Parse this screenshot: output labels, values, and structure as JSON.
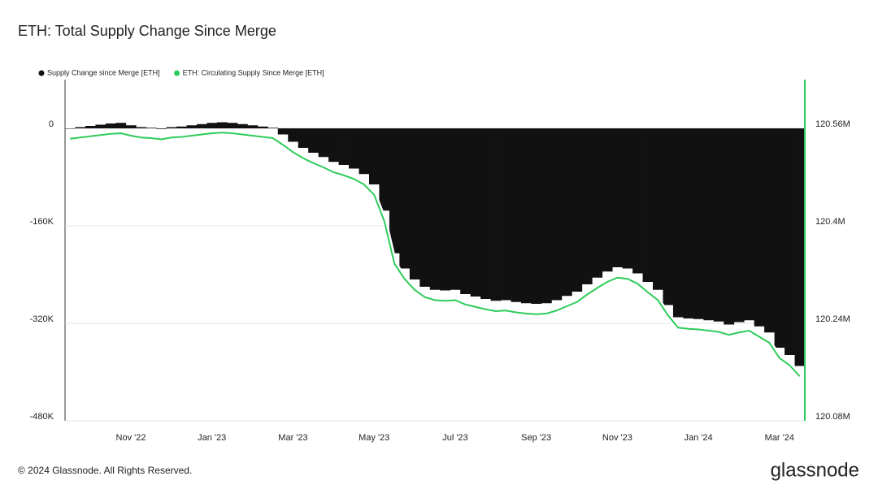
{
  "chart_data": {
    "type": "bar-line",
    "title": "ETH: Total Supply Change Since Merge",
    "categories": [
      null,
      null,
      null,
      null,
      null,
      null,
      "Nov '22",
      null,
      null,
      null,
      null,
      null,
      null,
      null,
      "Jan '23",
      null,
      null,
      null,
      null,
      null,
      null,
      null,
      "Mar '23",
      null,
      null,
      null,
      null,
      null,
      null,
      null,
      "May '23",
      null,
      null,
      null,
      null,
      null,
      null,
      null,
      "Jul '23",
      null,
      null,
      null,
      null,
      null,
      null,
      null,
      "Sep '23",
      null,
      null,
      null,
      null,
      null,
      null,
      null,
      "Nov '23",
      null,
      null,
      null,
      null,
      null,
      null,
      null,
      "Jan '24",
      null,
      null,
      null,
      null,
      null,
      null,
      null,
      "Mar '24",
      null,
      null
    ],
    "series": [
      {
        "name": "Supply Change since Merge [ETH]",
        "color": "#111111",
        "values": [
          0,
          2000,
          4000,
          6000,
          8000,
          9000,
          5000,
          2000,
          1000,
          -1000,
          2000,
          3000,
          5000,
          7000,
          9000,
          10000,
          9000,
          7000,
          5000,
          3000,
          1000,
          -10000,
          -22000,
          -32000,
          -40000,
          -47000,
          -55000,
          -60000,
          -66000,
          -75000,
          -92000,
          -135000,
          -205000,
          -230000,
          -248000,
          -260000,
          -265000,
          -266000,
          -265000,
          -272000,
          -276000,
          -280000,
          -283000,
          -282000,
          -285000,
          -287000,
          -288000,
          -287000,
          -282000,
          -275000,
          -268000,
          -256000,
          -245000,
          -235000,
          -228000,
          -230000,
          -238000,
          -252000,
          -265000,
          -290000,
          -310000,
          -312000,
          -313000,
          -315000,
          -317000,
          -322000,
          -318000,
          -315000,
          -325000,
          -335000,
          -360000,
          -372000,
          -390000
        ]
      },
      {
        "name": "ETH: Circulating Supply Since Merge [ETH]",
        "color": "#2ecc5a",
        "axis": "y2",
        "values": [
          120543000,
          120545000,
          120547000,
          120549000,
          120551000,
          120552000,
          120548000,
          120545000,
          120544000,
          120542000,
          120545000,
          120546000,
          120548000,
          120550000,
          120552000,
          120553000,
          120552000,
          120550000,
          120548000,
          120546000,
          120544000,
          120533000,
          120521000,
          120511000,
          120503000,
          120496000,
          120488000,
          120483000,
          120477000,
          120468000,
          120451000,
          120408000,
          120338000,
          120313000,
          120295000,
          120283000,
          120278000,
          120277000,
          120278000,
          120271000,
          120267000,
          120263000,
          120260000,
          120261000,
          120258000,
          120256000,
          120255000,
          120256000,
          120261000,
          120268000,
          120275000,
          120287000,
          120298000,
          120308000,
          120315000,
          120313000,
          120305000,
          120291000,
          120278000,
          120253000,
          120233000,
          120231000,
          120230000,
          120228000,
          120226000,
          120221000,
          120225000,
          120228000,
          120218000,
          120208000,
          120183000,
          120171000,
          120153000
        ]
      }
    ],
    "ylim": [
      -480000,
      80000
    ],
    "yticks": [
      {
        "value": 0,
        "label": "0"
      },
      {
        "value": -160000,
        "label": "-160K"
      },
      {
        "value": -320000,
        "label": "-320K"
      },
      {
        "value": -480000,
        "label": "-480K"
      }
    ],
    "y2lim": [
      120080000,
      120640000
    ],
    "y2ticks": [
      {
        "value": 120560000,
        "label": "120.56M"
      },
      {
        "value": 120400000,
        "label": "120.4M"
      },
      {
        "value": 120240000,
        "label": "120.24M"
      },
      {
        "value": 120080000,
        "label": "120.08M"
      }
    ],
    "grid": true,
    "legend": "top-left"
  },
  "footer": "© 2024 Glassnode. All Rights Reserved.",
  "brand": "glassnode"
}
